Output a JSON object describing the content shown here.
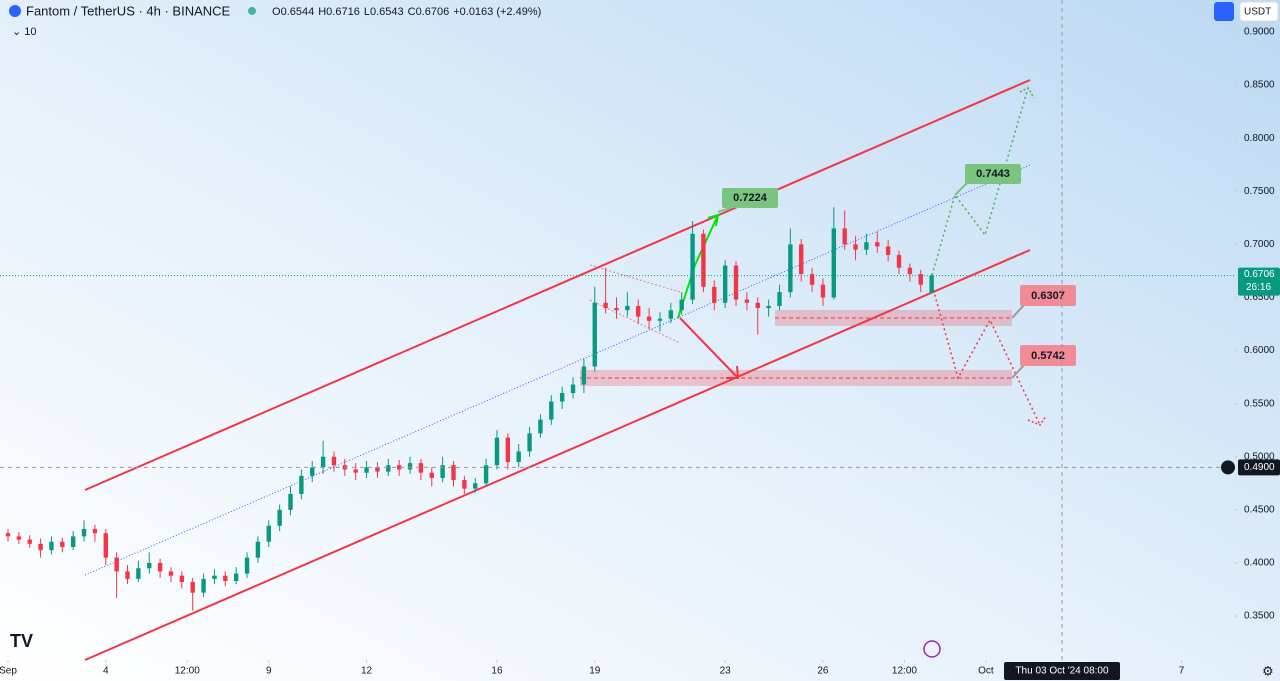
{
  "chart_data": {
    "type": "candlestick",
    "title": "Fantom / TetherUS · 4h · BINANCE",
    "change": "+0.0163 (+2.49%)",
    "ohlc_letters": [
      "O",
      "H",
      "L",
      "C"
    ],
    "indicator": "10",
    "currency": "USDT",
    "countdown": "26:16",
    "xlim": [
      -0.245,
      37.64
    ],
    "ylim": [
      0.3086,
      0.9301
    ],
    "xticks": [
      {
        "value": 0,
        "label": "Sep"
      },
      {
        "value": 3,
        "label": "4"
      },
      {
        "value": 5.5,
        "label": "12:00"
      },
      {
        "value": 8,
        "label": "9"
      },
      {
        "value": 11,
        "label": "12"
      },
      {
        "value": 15,
        "label": "16"
      },
      {
        "value": 18,
        "label": "19"
      },
      {
        "value": 22,
        "label": "23"
      },
      {
        "value": 25,
        "label": "26"
      },
      {
        "value": 27.5,
        "label": "12:00"
      },
      {
        "value": 30,
        "label": "Oct"
      },
      {
        "value": 36,
        "label": "7"
      }
    ],
    "yticks": [
      {
        "value": 0.9,
        "label": "0.9000"
      },
      {
        "value": 0.85,
        "label": "0.8500"
      },
      {
        "value": 0.8,
        "label": "0.8000"
      },
      {
        "value": 0.75,
        "label": "0.7500"
      },
      {
        "value": 0.7,
        "label": "0.7000"
      },
      {
        "value": 0.65,
        "label": "0.6500"
      },
      {
        "value": 0.6,
        "label": "0.6000"
      },
      {
        "value": 0.55,
        "label": "0.5500"
      },
      {
        "value": 0.5,
        "label": "0.5000"
      },
      {
        "value": 0.45,
        "label": "0.4500"
      },
      {
        "value": 0.4,
        "label": "0.4000"
      },
      {
        "value": 0.35,
        "label": "0.3500"
      }
    ],
    "crosshair": {
      "x": {
        "value": 32.3333,
        "label": "Thu 03 Oct '24 08:00"
      },
      "y": {
        "value": 0.49,
        "label": "0.4900"
      }
    },
    "up_color": "#089981",
    "down_color": "#f23645",
    "price_labels": [
      0.7224,
      0.7443,
      0.6307,
      0.5742
    ],
    "x": [
      0,
      0.3333,
      0.6667,
      1,
      1.3333,
      1.6667,
      2,
      2.3333,
      2.6667,
      3,
      3.3333,
      3.6667,
      4,
      4.3333,
      4.6667,
      5,
      5.3333,
      5.6667,
      6,
      6.3333,
      6.6667,
      7,
      7.3333,
      7.6667,
      8,
      8.3333,
      8.6667,
      9,
      9.3333,
      9.6667,
      10,
      10.3333,
      10.6667,
      11,
      11.3333,
      11.6667,
      12,
      12.3333,
      12.6667,
      13,
      13.3333,
      13.6667,
      14,
      14.3333,
      14.6667,
      15,
      15.3333,
      15.6667,
      16,
      16.3333,
      16.6667,
      17,
      17.3333,
      17.6667,
      18,
      18.3333,
      18.6667,
      19,
      19.3333,
      19.6667,
      20,
      20.3333,
      20.6667,
      21,
      21.3333,
      21.6667,
      22,
      22.3333,
      22.6667,
      23,
      23.3333,
      23.6667,
      24,
      24.3333,
      24.6667,
      25,
      25.3333,
      25.6667,
      26,
      26.3333,
      26.6667,
      27,
      27.3333,
      27.6667,
      28,
      28.3333
    ],
    "ohlc": [
      [
        0.428,
        0.432,
        0.42,
        0.425
      ],
      [
        0.425,
        0.429,
        0.418,
        0.422
      ],
      [
        0.422,
        0.426,
        0.414,
        0.418
      ],
      [
        0.418,
        0.423,
        0.405,
        0.412
      ],
      [
        0.412,
        0.425,
        0.408,
        0.42
      ],
      [
        0.42,
        0.424,
        0.41,
        0.415
      ],
      [
        0.415,
        0.43,
        0.412,
        0.425
      ],
      [
        0.425,
        0.44,
        0.42,
        0.432
      ],
      [
        0.432,
        0.436,
        0.42,
        0.428
      ],
      [
        0.428,
        0.432,
        0.398,
        0.405
      ],
      [
        0.405,
        0.41,
        0.367,
        0.392
      ],
      [
        0.392,
        0.398,
        0.38,
        0.385
      ],
      [
        0.385,
        0.402,
        0.382,
        0.395
      ],
      [
        0.395,
        0.41,
        0.39,
        0.4
      ],
      [
        0.4,
        0.404,
        0.386,
        0.392
      ],
      [
        0.392,
        0.396,
        0.382,
        0.388
      ],
      [
        0.388,
        0.392,
        0.376,
        0.382
      ],
      [
        0.382,
        0.386,
        0.355,
        0.372
      ],
      [
        0.372,
        0.39,
        0.368,
        0.385
      ],
      [
        0.385,
        0.394,
        0.38,
        0.388
      ],
      [
        0.388,
        0.392,
        0.378,
        0.383
      ],
      [
        0.383,
        0.396,
        0.38,
        0.39
      ],
      [
        0.39,
        0.41,
        0.386,
        0.405
      ],
      [
        0.405,
        0.425,
        0.4,
        0.42
      ],
      [
        0.42,
        0.44,
        0.415,
        0.435
      ],
      [
        0.435,
        0.455,
        0.43,
        0.45
      ],
      [
        0.45,
        0.472,
        0.445,
        0.465
      ],
      [
        0.465,
        0.488,
        0.46,
        0.482
      ],
      [
        0.482,
        0.496,
        0.476,
        0.49
      ],
      [
        0.49,
        0.515,
        0.484,
        0.5
      ],
      [
        0.5,
        0.505,
        0.486,
        0.492
      ],
      [
        0.492,
        0.498,
        0.482,
        0.488
      ],
      [
        0.488,
        0.494,
        0.478,
        0.485
      ],
      [
        0.485,
        0.496,
        0.48,
        0.49
      ],
      [
        0.49,
        0.495,
        0.48,
        0.486
      ],
      [
        0.486,
        0.498,
        0.482,
        0.492
      ],
      [
        0.492,
        0.497,
        0.482,
        0.488
      ],
      [
        0.488,
        0.5,
        0.484,
        0.494
      ],
      [
        0.494,
        0.498,
        0.478,
        0.485
      ],
      [
        0.485,
        0.49,
        0.472,
        0.48
      ],
      [
        0.48,
        0.5,
        0.476,
        0.492
      ],
      [
        0.492,
        0.496,
        0.472,
        0.478
      ],
      [
        0.478,
        0.482,
        0.465,
        0.47
      ],
      [
        0.47,
        0.48,
        0.466,
        0.475
      ],
      [
        0.475,
        0.498,
        0.472,
        0.492
      ],
      [
        0.492,
        0.525,
        0.488,
        0.518
      ],
      [
        0.518,
        0.522,
        0.488,
        0.495
      ],
      [
        0.495,
        0.512,
        0.49,
        0.505
      ],
      [
        0.505,
        0.528,
        0.5,
        0.522
      ],
      [
        0.522,
        0.54,
        0.518,
        0.535
      ],
      [
        0.535,
        0.558,
        0.53,
        0.552
      ],
      [
        0.552,
        0.566,
        0.545,
        0.56
      ],
      [
        0.56,
        0.575,
        0.555,
        0.568
      ],
      [
        0.568,
        0.592,
        0.56,
        0.585
      ],
      [
        0.585,
        0.66,
        0.58,
        0.645
      ],
      [
        0.645,
        0.678,
        0.635,
        0.64
      ],
      [
        0.64,
        0.65,
        0.63,
        0.638
      ],
      [
        0.638,
        0.655,
        0.632,
        0.642
      ],
      [
        0.642,
        0.648,
        0.625,
        0.632
      ],
      [
        0.632,
        0.64,
        0.62,
        0.628
      ],
      [
        0.628,
        0.636,
        0.618,
        0.63
      ],
      [
        0.63,
        0.645,
        0.626,
        0.638
      ],
      [
        0.638,
        0.655,
        0.634,
        0.648
      ],
      [
        0.648,
        0.722,
        0.644,
        0.71
      ],
      [
        0.71,
        0.714,
        0.655,
        0.66
      ],
      [
        0.66,
        0.666,
        0.638,
        0.645
      ],
      [
        0.645,
        0.685,
        0.64,
        0.68
      ],
      [
        0.68,
        0.684,
        0.642,
        0.648
      ],
      [
        0.648,
        0.655,
        0.638,
        0.645
      ],
      [
        0.645,
        0.65,
        0.615,
        0.64
      ],
      [
        0.64,
        0.648,
        0.632,
        0.642
      ],
      [
        0.642,
        0.662,
        0.638,
        0.655
      ],
      [
        0.655,
        0.715,
        0.65,
        0.7
      ],
      [
        0.7,
        0.705,
        0.665,
        0.672
      ],
      [
        0.672,
        0.678,
        0.655,
        0.662
      ],
      [
        0.662,
        0.668,
        0.642,
        0.65
      ],
      [
        0.65,
        0.735,
        0.648,
        0.715
      ],
      [
        0.715,
        0.732,
        0.695,
        0.7
      ],
      [
        0.7,
        0.708,
        0.685,
        0.695
      ],
      [
        0.695,
        0.71,
        0.69,
        0.702
      ],
      [
        0.702,
        0.712,
        0.692,
        0.698
      ],
      [
        0.698,
        0.704,
        0.684,
        0.69
      ],
      [
        0.69,
        0.694,
        0.672,
        0.678
      ],
      [
        0.678,
        0.682,
        0.665,
        0.672
      ],
      [
        0.672,
        0.676,
        0.655,
        0.662
      ],
      [
        0.6544,
        0.6716,
        0.6543,
        0.6706
      ]
    ]
  }
}
